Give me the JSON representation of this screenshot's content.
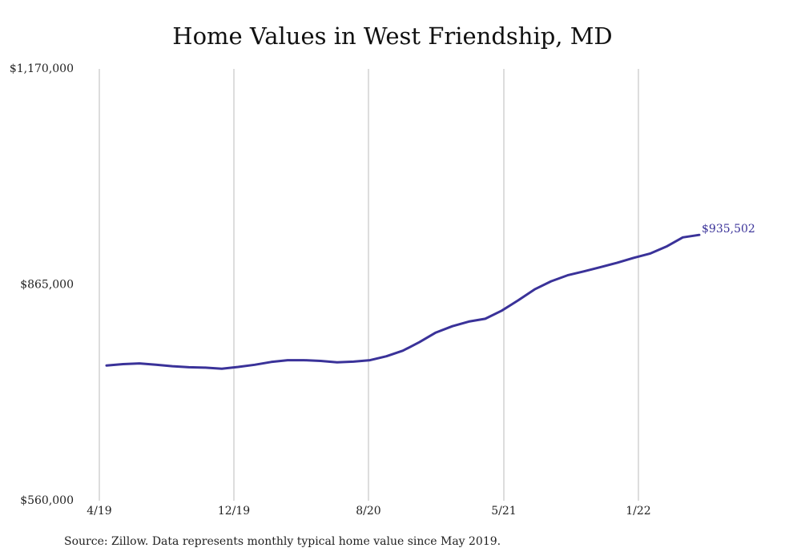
{
  "chart_data": {
    "type": "line",
    "title": "Home Values in West Friendship, MD",
    "xlabel": "",
    "ylabel": "",
    "ylim": [
      560000,
      1170000
    ],
    "y_ticks": [
      "$560,000",
      "$865,000",
      "$1,170,000"
    ],
    "x_tick_labels": [
      "4/19",
      "12/19",
      "8/20",
      "5/21",
      "1/22"
    ],
    "grid": "vertical",
    "series": [
      {
        "x": [
          "2019-05",
          "2019-06",
          "2019-07",
          "2019-08",
          "2019-09",
          "2019-10",
          "2019-11",
          "2019-12",
          "2020-01",
          "2020-02",
          "2020-03",
          "2020-04",
          "2020-05",
          "2020-06",
          "2020-07",
          "2020-08",
          "2020-09",
          "2020-10",
          "2020-11",
          "2020-12",
          "2021-01",
          "2021-02",
          "2021-03",
          "2021-04",
          "2021-05",
          "2021-06",
          "2021-07",
          "2021-08",
          "2021-09",
          "2021-10",
          "2021-11",
          "2021-12",
          "2022-01",
          "2022-02",
          "2022-03",
          "2022-04",
          "2022-05"
        ],
        "values": [
          751000,
          753000,
          754000,
          752000,
          750000,
          748500,
          748000,
          746500,
          749000,
          752000,
          756000,
          758500,
          758500,
          757500,
          755500,
          756500,
          758500,
          764000,
          772000,
          784000,
          797500,
          806500,
          813000,
          817000,
          828500,
          843000,
          858500,
          870000,
          878500,
          884000,
          890000,
          896000,
          903000,
          909000,
          919000,
          932000,
          935502
        ],
        "end_label": "$935,502",
        "color": "#3a3299"
      }
    ]
  },
  "footer": {
    "source": "Source: Zillow. Data represents monthly typical home value since May 2019."
  }
}
